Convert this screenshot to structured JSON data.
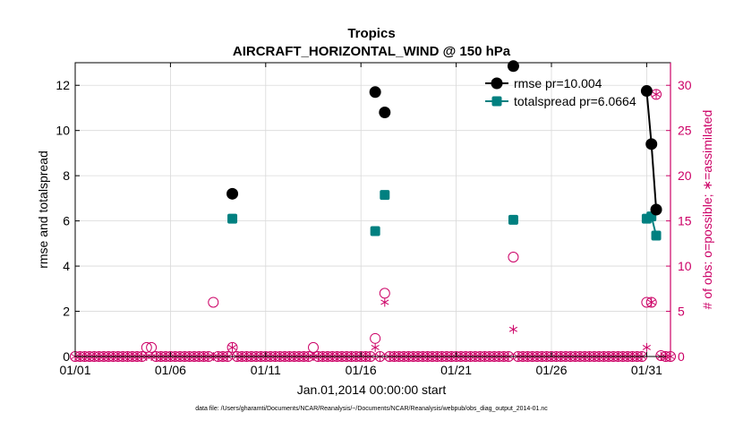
{
  "chart_data": {
    "type": "scatter",
    "title": "Tropics",
    "subtitle": "AIRCRAFT_HORIZONTAL_WIND @ 150 hPa",
    "xlabel": "Jan.01,2014 00:00:00 start",
    "ylabel_left": "rmse and totalspread",
    "ylabel_right": "# of obs: o=possible; ∗=assimilated",
    "footnote": "data file: /Users/gharamti/Documents/NCAR/Reanalysis/~/Documents/NCAR/Reanalysis/webpub/obs_diag_output_2014-01.nc",
    "xlim": [
      1,
      32.25
    ],
    "ylim_left": [
      0,
      13
    ],
    "ylim_right": [
      0,
      32.5
    ],
    "x_ticks": [
      1,
      6,
      11,
      16,
      21,
      26,
      31
    ],
    "x_tick_labels": [
      "01/01",
      "01/06",
      "01/11",
      "01/16",
      "01/21",
      "01/26",
      "01/31"
    ],
    "y_left_ticks": [
      0,
      2,
      4,
      6,
      8,
      10,
      12
    ],
    "y_right_ticks": [
      0,
      5,
      10,
      15,
      20,
      25,
      30
    ],
    "colors": {
      "rmse": "#000000",
      "totalspread": "#008080",
      "obs": "#cc0066",
      "grid": "#d9d9d9"
    },
    "legend": [
      {
        "label": "rmse pr=10.004",
        "series": "rmse"
      },
      {
        "label": "totalspread pr=6.0664",
        "series": "totalspread"
      }
    ],
    "series": [
      {
        "name": "rmse",
        "axis": "left",
        "points": [
          [
            9.25,
            7.2
          ],
          [
            16.75,
            11.7
          ],
          [
            17.25,
            10.8
          ],
          [
            24.0,
            12.85
          ],
          [
            31.0,
            11.75
          ],
          [
            31.25,
            9.4
          ],
          [
            31.5,
            6.5
          ]
        ],
        "line_segments": [
          [
            31.0,
            31.25,
            31.5
          ]
        ]
      },
      {
        "name": "totalspread",
        "axis": "left",
        "points": [
          [
            9.25,
            6.1
          ],
          [
            16.75,
            5.55
          ],
          [
            17.25,
            7.15
          ],
          [
            24.0,
            6.05
          ],
          [
            31.0,
            6.1
          ],
          [
            31.25,
            6.2
          ],
          [
            31.5,
            5.35
          ]
        ],
        "line_segments": [
          [
            31.0,
            31.25,
            31.5
          ]
        ]
      },
      {
        "name": "obs_possible",
        "axis": "right",
        "x_start": 1.0,
        "x_step": 0.25,
        "baseline": 0,
        "nonzero": [
          [
            4.75,
            1
          ],
          [
            5.0,
            1
          ],
          [
            8.25,
            6
          ],
          [
            9.25,
            1
          ],
          [
            13.5,
            1
          ],
          [
            16.75,
            2
          ],
          [
            17.25,
            7
          ],
          [
            24.0,
            11
          ],
          [
            31.0,
            6
          ],
          [
            31.25,
            6
          ],
          [
            31.5,
            29
          ],
          [
            31.75,
            0.1
          ]
        ]
      },
      {
        "name": "obs_assimilated",
        "axis": "right",
        "x_start": 1.0,
        "x_step": 0.25,
        "baseline": 0,
        "nonzero": [
          [
            9.25,
            1
          ],
          [
            16.75,
            1
          ],
          [
            17.25,
            6
          ],
          [
            24.0,
            3
          ],
          [
            31.0,
            1
          ],
          [
            31.25,
            6
          ],
          [
            31.5,
            29
          ]
        ]
      }
    ]
  }
}
